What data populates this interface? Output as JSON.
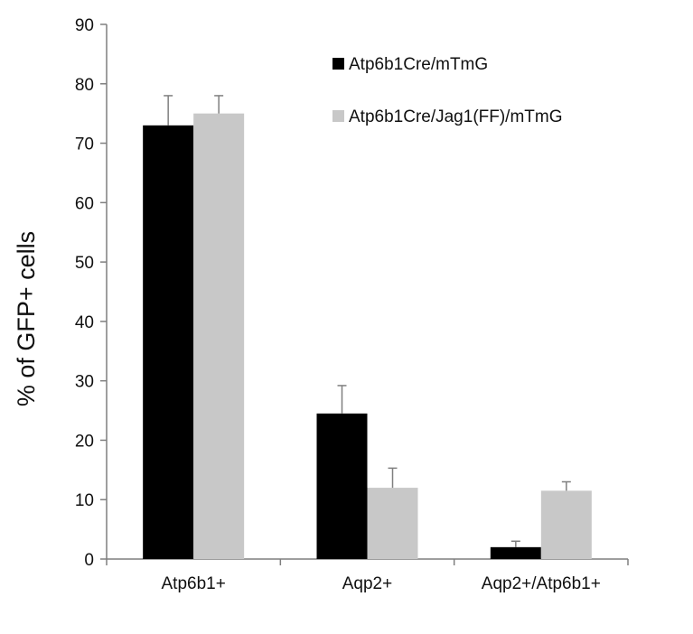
{
  "chart_data": {
    "type": "bar",
    "title": "",
    "xlabel": "",
    "ylabel": "% of GFP+ cells",
    "ylim": [
      0,
      90
    ],
    "yticks": [
      0,
      10,
      20,
      30,
      40,
      50,
      60,
      70,
      80,
      90
    ],
    "categories": [
      "Atp6b1+",
      "Aqp2+",
      "Aqp2+/Atp6b1+"
    ],
    "series": [
      {
        "name": "Atp6b1Cre/mTmG",
        "color": "#000000",
        "values": [
          73,
          24.5,
          2
        ],
        "errors": [
          5,
          4.7,
          1
        ]
      },
      {
        "name": "Atp6b1Cre/Jag1(FF)/mTmG",
        "color": "#c8c8c8",
        "values": [
          75,
          12,
          11.5
        ],
        "errors": [
          3,
          3.3,
          1.5
        ]
      }
    ],
    "legend_position": "top-right",
    "grid": false
  }
}
